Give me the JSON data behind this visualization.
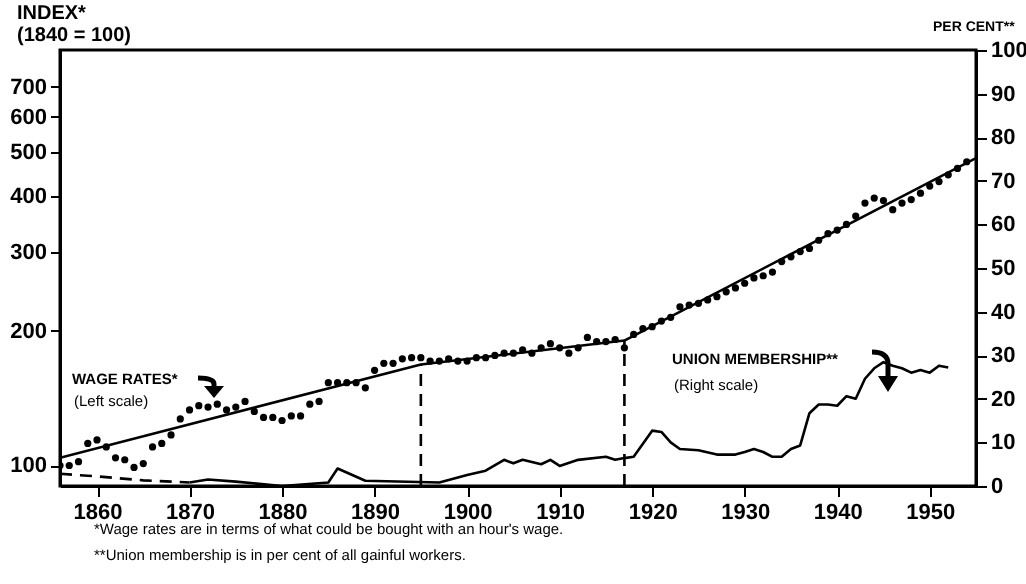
{
  "chart_data": {
    "type": "line",
    "ylabel": "INDEX*\n(1840 = 100)",
    "y2label": "PER CENT**",
    "annotations": [
      "(Left scale)",
      "(Right scale)",
      "*Wage rates are in terms of what could be bought with an hour's wage.",
      "**Union membership is in per cent of all gainful workers."
    ],
    "xlim": [
      1856,
      1955
    ],
    "xticks": [
      1860,
      1870,
      1880,
      1890,
      1900,
      1910,
      1920,
      1930,
      1940,
      1950
    ],
    "ylim": [
      90,
      845
    ],
    "yticks": [
      100,
      200,
      300,
      400,
      500,
      600,
      700
    ],
    "log": "y",
    "y2lim": [
      0,
      100
    ],
    "y2ticks": [
      0,
      10,
      20,
      30,
      40,
      50,
      60,
      70,
      80,
      90,
      100
    ],
    "grid": false,
    "legend": "bottom",
    "ref_lines": [
      {
        "axis": "x",
        "value": 1895,
        "line_style": "dashed",
        "color": "#000000"
      },
      {
        "axis": "x",
        "value": 1917,
        "line_style": "dashed",
        "color": "#000000"
      }
    ],
    "series": [
      {
        "name": "WAGE RATES*",
        "type": "scatter",
        "marker": "circle",
        "color": "#000000",
        "x": [
          1856,
          1857,
          1858,
          1859,
          1860,
          1861,
          1862,
          1863,
          1864,
          1865,
          1866,
          1867,
          1868,
          1869,
          1870,
          1871,
          1872,
          1873,
          1874,
          1875,
          1876,
          1877,
          1878,
          1879,
          1880,
          1881,
          1882,
          1883,
          1884,
          1885,
          1886,
          1887,
          1888,
          1889,
          1890,
          1891,
          1892,
          1893,
          1894,
          1895,
          1896,
          1897,
          1898,
          1899,
          1900,
          1901,
          1902,
          1903,
          1904,
          1905,
          1906,
          1907,
          1908,
          1909,
          1910,
          1911,
          1912,
          1913,
          1914,
          1915,
          1916,
          1917,
          1918,
          1919,
          1920,
          1921,
          1922,
          1923,
          1924,
          1925,
          1926,
          1927,
          1928,
          1929,
          1930,
          1931,
          1932,
          1933,
          1934,
          1935,
          1936,
          1937,
          1938,
          1939,
          1940,
          1941,
          1942,
          1943,
          1944,
          1945,
          1946,
          1947,
          1948,
          1949,
          1950,
          1951,
          1952,
          1953,
          1954
        ],
        "values": [
          100,
          100,
          102,
          112,
          114,
          110,
          104,
          103,
          99,
          101,
          110,
          112,
          117,
          127,
          133,
          136,
          135,
          137,
          133,
          135,
          139,
          132,
          128,
          128,
          126,
          129,
          129,
          137,
          139,
          153,
          153,
          153,
          153,
          149,
          163,
          169,
          169,
          173,
          174,
          174,
          171,
          171,
          173,
          171,
          171,
          174,
          174,
          176,
          178,
          178,
          181,
          178,
          183,
          187,
          183,
          178,
          183,
          193,
          189,
          189,
          191,
          183,
          196,
          202,
          204,
          210,
          214,
          226,
          228,
          230,
          234,
          238,
          244,
          249,
          255,
          262,
          265,
          270,
          285,
          292,
          300,
          305,
          318,
          329,
          335,
          345,
          360,
          385,
          395,
          390,
          372,
          385,
          392,
          405,
          420,
          430,
          445,
          460,
          476
        ]
      },
      {
        "color": "#000000",
        "x": [
          1856,
          1895,
          1917,
          1955
        ],
        "values": [
          104,
          168,
          190,
          485
        ]
      },
      {
        "axis": "y2",
        "line_style": "dashed",
        "color": "#000000",
        "x": [
          1856,
          1860,
          1865,
          1870
        ],
        "values": [
          2.8,
          2.2,
          1.3,
          0.8
        ]
      },
      {
        "name": "UNION MEMBERSHIP**",
        "axis": "y2",
        "color": "#000000",
        "x": [
          1870,
          1872,
          1875,
          1880,
          1885,
          1886,
          1889,
          1897,
          1900,
          1902,
          1904,
          1905,
          1906,
          1908,
          1909,
          1910,
          1912,
          1915,
          1916,
          1917,
          1918,
          1919,
          1920,
          1921,
          1922,
          1923,
          1925,
          1927,
          1929,
          1930,
          1931,
          1932,
          1933,
          1934,
          1935,
          1936,
          1937,
          1938,
          1939,
          1940,
          1941,
          1942,
          1943,
          1944,
          1945,
          1946,
          1947,
          1948,
          1949,
          1950,
          1951,
          1952
        ],
        "values": [
          0.8,
          1.5,
          1,
          0,
          0.8,
          4,
          1.2,
          0.8,
          2.5,
          3.5,
          6,
          5.2,
          6,
          5,
          6,
          4.6,
          6,
          6.7,
          6,
          6.4,
          6.7,
          9.7,
          12.7,
          12.4,
          10,
          8.5,
          8.2,
          7.2,
          7.2,
          7.8,
          8.5,
          7.8,
          6.7,
          6.7,
          8.5,
          9.3,
          16.7,
          18.7,
          18.7,
          18.4,
          20.6,
          20,
          24.6,
          27,
          28.4,
          27.6,
          27,
          26,
          26.6,
          26,
          27.6,
          27.2
        ]
      }
    ]
  }
}
